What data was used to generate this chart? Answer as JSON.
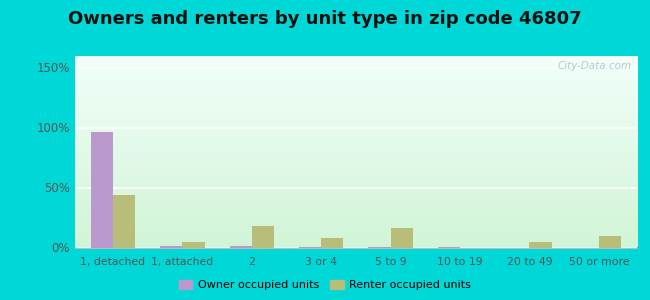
{
  "title": "Owners and renters by unit type in zip code 46807",
  "categories": [
    "1, detached",
    "1, attached",
    "2",
    "3 or 4",
    "5 to 9",
    "10 to 19",
    "20 to 49",
    "50 or more"
  ],
  "owner_values": [
    96,
    1,
    1.5,
    0.5,
    0.5,
    0.5,
    0,
    0
  ],
  "renter_values": [
    44,
    5,
    18,
    8,
    16,
    0,
    5,
    10
  ],
  "owner_color": "#bb99cc",
  "renter_color": "#b8bd7a",
  "ylim": [
    0,
    160
  ],
  "yticks": [
    0,
    50,
    100,
    150
  ],
  "ytick_labels": [
    "0%",
    "50%",
    "100%",
    "150%"
  ],
  "outer_bg": "#00d8d8",
  "watermark": "City-Data.com",
  "title_fontsize": 13,
  "legend_labels": [
    "Owner occupied units",
    "Renter occupied units"
  ]
}
